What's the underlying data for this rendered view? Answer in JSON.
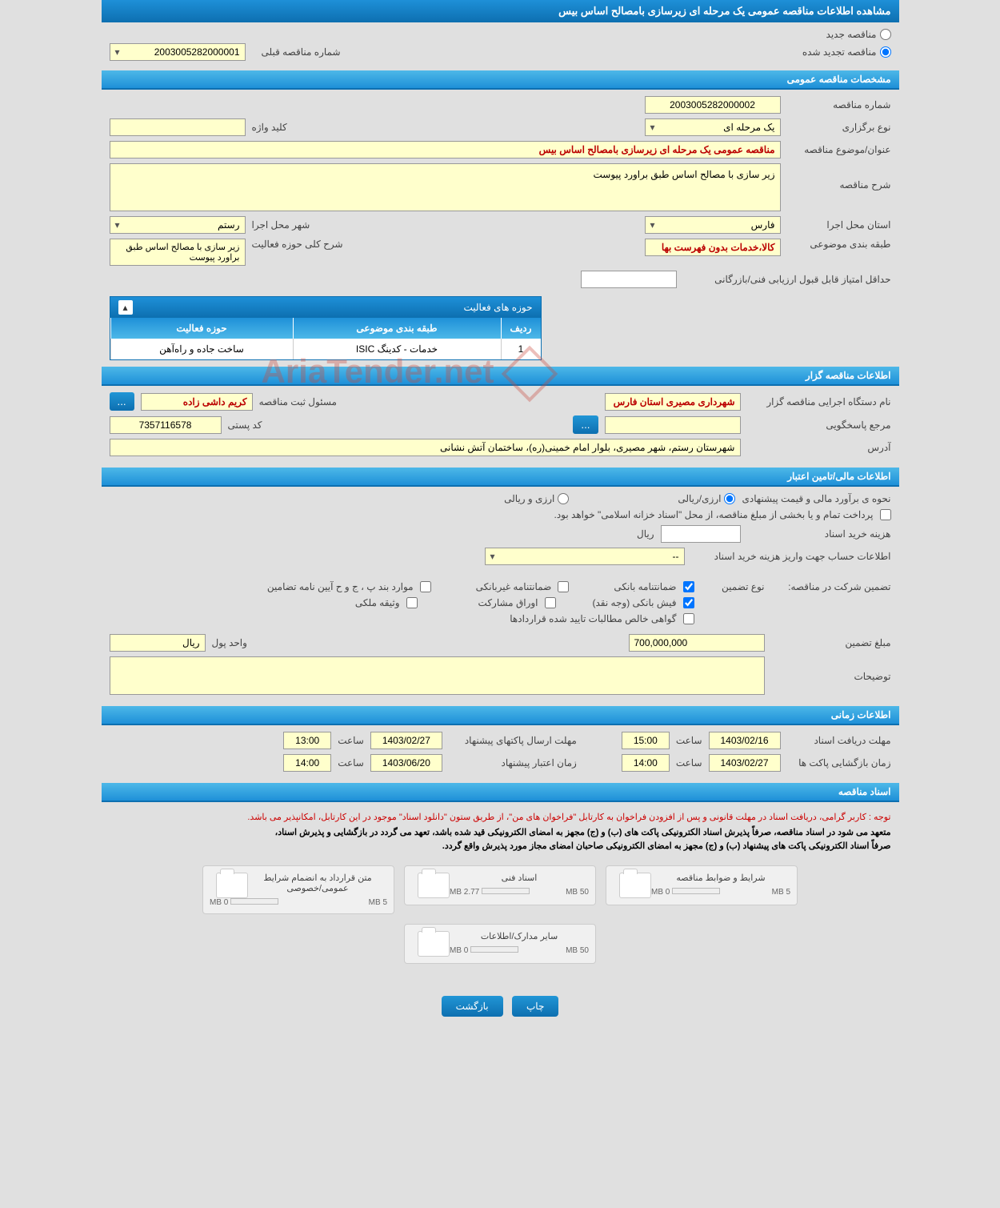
{
  "header": {
    "title": "مشاهده اطلاعات مناقصه عمومی یک مرحله ای زیرسازی بامصالح اساس بیس"
  },
  "tender_type": {
    "option_new": "مناقصه جدید",
    "option_renewed": "مناقصه تجدید شده",
    "prev_number_label": "شماره مناقصه قبلی",
    "prev_number_value": "2003005282000001"
  },
  "sections": {
    "general": "مشخصات مناقصه عمومی",
    "organizer": "اطلاعات مناقصه گزار",
    "financial": "اطلاعات مالی/تامین اعتبار",
    "timing": "اطلاعات زمانی",
    "documents": "اسناد مناقصه"
  },
  "general": {
    "tender_number_label": "شماره مناقصه",
    "tender_number_value": "2003005282000002",
    "hold_type_label": "نوع برگزاری",
    "hold_type_value": "یک مرحله ای",
    "keyword_label": "کلید واژه",
    "keyword_value": "",
    "title_label": "عنوان/موضوع مناقصه",
    "title_value": "مناقصه عمومی یک مرحله ای زیرسازی بامصالح اساس بیس",
    "desc_label": "شرح مناقصه",
    "desc_value": "زیر سازی با مصالح اساس طبق براورد پیوست",
    "province_label": "استان محل اجرا",
    "province_value": "فارس",
    "city_label": "شهر محل اجرا",
    "city_value": "رستم",
    "category_label": "طبقه بندی موضوعی",
    "category_value": "کالا،خدمات بدون فهرست بها",
    "activity_desc_label": "شرح کلی حوزه فعالیت",
    "activity_desc_value": "زیر سازی با مصالح اساس طبق براورد پیوست",
    "min_score_label": "حداقل امتیاز قابل قبول ارزیابی فنی/بازرگانی",
    "min_score_value": ""
  },
  "activity_table": {
    "title": "حوزه های فعالیت",
    "col_row": "ردیف",
    "col_category": "طبقه بندی موضوعی",
    "col_field": "حوزه فعالیت",
    "rows": [
      {
        "idx": "1",
        "category": "خدمات - کدینگ ISIC",
        "field": "ساخت جاده و راه‌آهن"
      }
    ]
  },
  "organizer": {
    "agency_label": "نام دستگاه اجرایی مناقصه گزار",
    "agency_value": "شهرداری مصیری استان فارس",
    "registrar_label": "مسئول ثبت مناقصه",
    "registrar_value": "کریم داشی زاده",
    "contact_label": "مرجع پاسخگویی",
    "contact_value": "",
    "postal_label": "کد پستی",
    "postal_value": "7357116578",
    "address_label": "آدرس",
    "address_value": "شهرستان رستم، شهر مصیری، بلوار امام خمینی(ره)، ساختمان آتش نشانی",
    "lookup_btn": "..."
  },
  "financial": {
    "method_label": "نحوه ی برآورد مالی و قیمت پیشنهادی",
    "option_rial": "ارزی/ریالی",
    "option_both": "ارزی و ریالی",
    "treasury_note": "پرداخت تمام و یا بخشی از مبلغ مناقصه، از محل \"اسناد خزانه اسلامی\" خواهد بود.",
    "doc_cost_label": "هزینه خرید اسناد",
    "doc_cost_unit": "ریال",
    "account_label": "اطلاعات حساب جهت واریز هزینه خرید اسناد",
    "account_value": "--",
    "guarantee_in_label": "تضمین شرکت در مناقصه:",
    "guarantee_type_label": "نوع تضمین",
    "opt_bank_guarantee": "ضمانتنامه بانکی",
    "opt_nonbank_guarantee": "ضمانتنامه غیربانکی",
    "opt_regulation": "موارد بند پ ، ج و ح آیین نامه تضامین",
    "opt_bank_receipt": "فیش بانکی (وجه نقد)",
    "opt_securities": "اوراق مشارکت",
    "opt_property": "وثیقه ملکی",
    "opt_certified": "گواهی خالص مطالبات تایید شده قراردادها",
    "guarantee_amount_label": "مبلغ تضمین",
    "guarantee_amount_value": "700,000,000",
    "currency_label": "واحد پول",
    "currency_value": "ریال",
    "notes_label": "توضیحات"
  },
  "timing": {
    "doc_receive_label": "مهلت دریافت اسناد",
    "doc_receive_date": "1403/02/16",
    "time_label": "ساعت",
    "doc_receive_time": "15:00",
    "packet_send_label": "مهلت ارسال پاکتهای پیشنهاد",
    "packet_send_date": "1403/02/27",
    "packet_send_time": "13:00",
    "packet_open_label": "زمان بازگشایی پاکت ها",
    "packet_open_date": "1403/02/27",
    "packet_open_time": "14:00",
    "validity_label": "زمان اعتبار پیشنهاد",
    "validity_date": "1403/06/20",
    "validity_time": "14:00"
  },
  "documents": {
    "notice_red": "توجه : کاربر گرامی، دریافت اسناد در مهلت قانونی و پس از افزودن فراخوان به کارتابل \"فراخوان های من\"، از طریق ستون \"دانلود اسناد\" موجود در این کارتابل، امکانپذیر می باشد.",
    "notice_line1": "متعهد می شود در اسناد مناقصه، صرفاً پذیرش اسناد الکترونیکی پاکت های (ب) و (ج) مجهز به امضای الکترونیکی قید شده باشد، تعهد می گردد در بازگشایی و پذیرش اسناد،",
    "notice_line2": "صرفاً اسناد الکترونیکی پاکت های پیشنهاد (ب) و (ج) مجهز به امضای الکترونیکی صاحبان امضای مجاز مورد پذیرش واقع گردد.",
    "files": [
      {
        "title": "شرایط و ضوابط مناقصه",
        "used": "0 MB",
        "total": "5 MB",
        "fill": 0
      },
      {
        "title": "اسناد فنی",
        "used": "2.77 MB",
        "total": "50 MB",
        "fill": 6
      },
      {
        "title": "متن قرارداد به انضمام شرایط عمومی/خصوصی",
        "used": "0 MB",
        "total": "5 MB",
        "fill": 0
      },
      {
        "title": "سایر مدارک/اطلاعات",
        "used": "0 MB",
        "total": "50 MB",
        "fill": 0
      }
    ]
  },
  "footer": {
    "print": "چاپ",
    "back": "بازگشت"
  },
  "watermark": "AriaTender.net"
}
